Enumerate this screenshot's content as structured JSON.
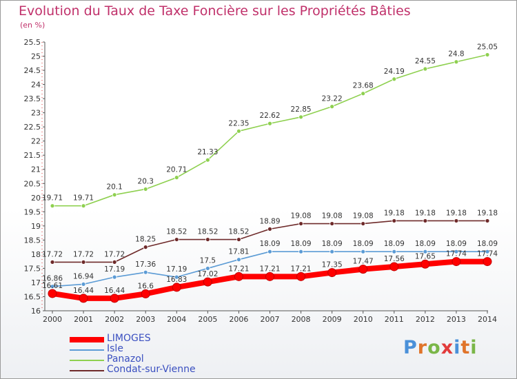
{
  "title": "Evolution du Taux de Taxe Foncière sur les Propriétés Bâties",
  "subtitle": "(en %)",
  "logo": {
    "letters": [
      "P",
      "r",
      "o",
      "x",
      "i",
      "t",
      "i"
    ],
    "colors": [
      "#4a90d9",
      "#e0742a",
      "#7ab648",
      "#e23b3b",
      "#4a90d9",
      "#e0742a",
      "#7ab648"
    ]
  },
  "chart_data": {
    "type": "line",
    "x": [
      2000,
      2001,
      2002,
      2003,
      2004,
      2005,
      2006,
      2007,
      2008,
      2009,
      2010,
      2011,
      2012,
      2013,
      2014
    ],
    "ylim": [
      16,
      25.5
    ],
    "yticks": [
      "16",
      "16.5",
      "17",
      "17.5",
      "18",
      "18.5",
      "19",
      "19.5",
      "20",
      "20.5",
      "21",
      "21.5",
      "22",
      "22.5",
      "23",
      "23.5",
      "24",
      "24.5",
      "25",
      "25.5"
    ],
    "grid": false,
    "legend_position": "bottom-left",
    "series": [
      {
        "name": "LIMOGES",
        "color": "#ff0000",
        "values": [
          16.61,
          16.44,
          16.44,
          16.6,
          16.83,
          17.02,
          17.21,
          17.21,
          17.21,
          17.35,
          17.47,
          17.56,
          17.65,
          17.74,
          17.74
        ],
        "labels": [
          "16.61",
          "16.44",
          "16.44",
          "16.6",
          "16.83",
          "17.02",
          "17.21",
          "17.21",
          "17.21",
          "17.35",
          "17.47",
          "17.56",
          "17.65",
          "17.74",
          "17.74"
        ]
      },
      {
        "name": "Isle",
        "color": "#5b9bd5",
        "values": [
          16.86,
          16.94,
          17.19,
          17.36,
          17.19,
          17.5,
          17.81,
          18.09,
          18.09,
          18.09,
          18.09,
          18.09,
          18.09,
          18.09,
          18.09
        ],
        "labels": [
          "16.86",
          "16.94",
          "17.19",
          "17.36",
          "17.19",
          "17.5",
          "17.81",
          "18.09",
          "18.09",
          "18.09",
          "18.09",
          "18.09",
          "18.09",
          "18.09",
          "18.09"
        ]
      },
      {
        "name": "Panazol",
        "color": "#8ed04f",
        "values": [
          19.71,
          19.71,
          20.1,
          20.3,
          20.71,
          21.33,
          22.35,
          22.62,
          22.85,
          23.22,
          23.68,
          24.19,
          24.55,
          24.8,
          25.05
        ],
        "labels": [
          "19.71",
          "19.71",
          "20.1",
          "20.3",
          "20.71",
          "21.33",
          "22.35",
          "22.62",
          "22.85",
          "23.22",
          "23.68",
          "24.19",
          "24.55",
          "24.8",
          "25.05"
        ]
      },
      {
        "name": "Condat-sur-Vienne",
        "color": "#6e2a2a",
        "values": [
          17.72,
          17.72,
          17.72,
          18.25,
          18.52,
          18.52,
          18.52,
          18.89,
          19.08,
          19.08,
          19.08,
          19.18,
          19.18,
          19.18,
          19.18
        ],
        "labels": [
          "17.72",
          "17.72",
          "17.72",
          "18.25",
          "18.52",
          "18.52",
          "18.52",
          "18.89",
          "19.08",
          "19.08",
          "19.08",
          "19.18",
          "19.18",
          "19.18",
          "19.18"
        ]
      }
    ]
  }
}
